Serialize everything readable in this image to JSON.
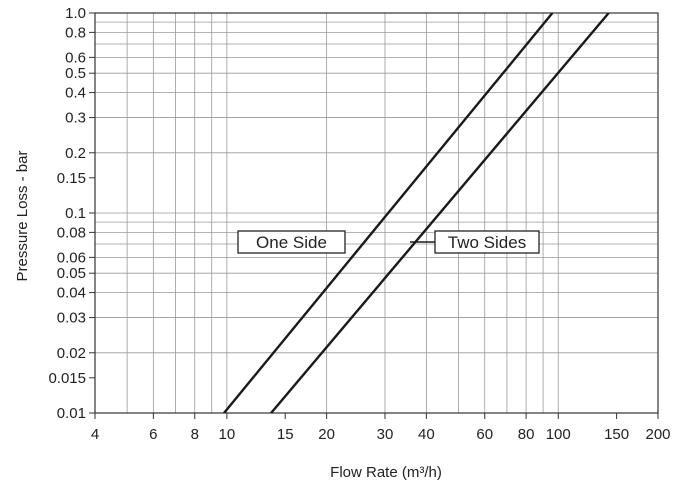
{
  "chart_data": {
    "type": "line",
    "title": "",
    "xlabel": "Flow Rate (m³/h)",
    "ylabel": "Pressure Loss - bar",
    "xscale": "log",
    "yscale": "log",
    "xlim": [
      4,
      200
    ],
    "ylim": [
      0.01,
      1.0
    ],
    "grid": true,
    "x_ticks": [
      4,
      6,
      8,
      10,
      15,
      20,
      30,
      40,
      60,
      80,
      100,
      150,
      200
    ],
    "x_tick_labels": [
      "4",
      "6",
      "8",
      "10",
      "15",
      "20",
      "30",
      "40",
      "60",
      "80",
      "100",
      "150",
      "200"
    ],
    "y_ticks": [
      0.01,
      0.015,
      0.02,
      0.03,
      0.04,
      0.05,
      0.06,
      0.08,
      0.1,
      0.15,
      0.2,
      0.3,
      0.4,
      0.5,
      0.6,
      0.8,
      1.0
    ],
    "y_tick_labels": [
      "0.01",
      "0.015",
      "0.02",
      "0.03",
      "0.04",
      "0.05",
      "0.06",
      "0.08",
      "0.1",
      "0.15",
      "0.2",
      "0.3",
      "0.4",
      "0.5",
      "0.6",
      "0.8",
      "1.0"
    ],
    "series": [
      {
        "name": "One Side",
        "x": [
          9.8,
          96
        ],
        "y": [
          0.01,
          1.0
        ]
      },
      {
        "name": "Two Sides",
        "x": [
          13.6,
          142
        ],
        "y": [
          0.01,
          1.0
        ]
      }
    ],
    "line_color": "#1a1a1a",
    "grid_color": "#9a9a9a"
  }
}
